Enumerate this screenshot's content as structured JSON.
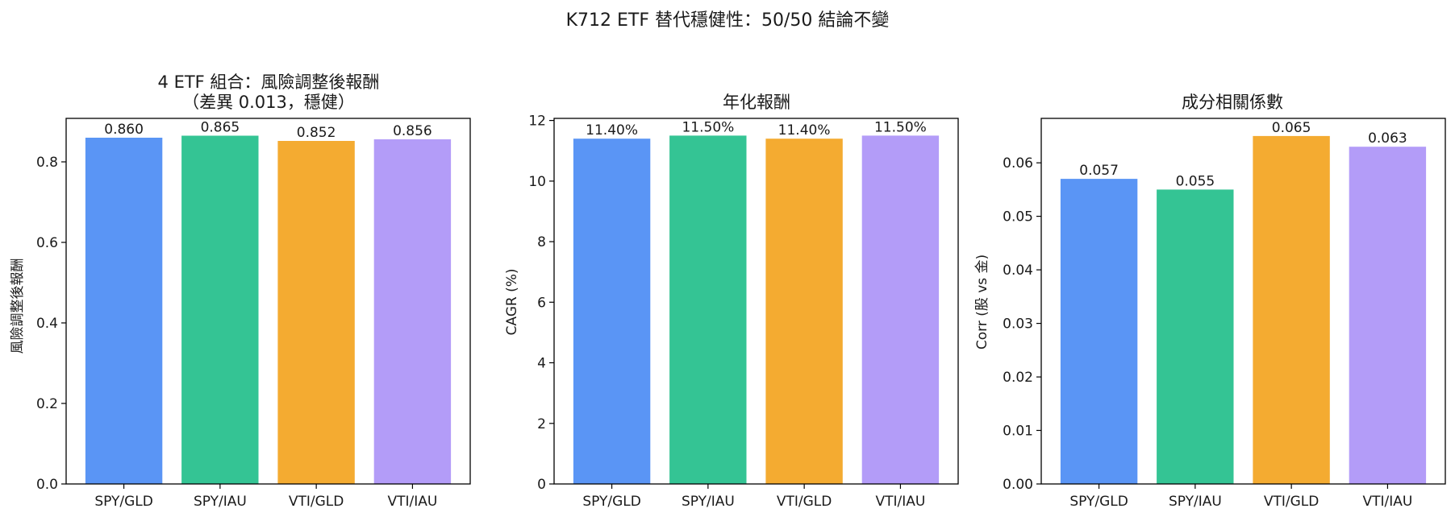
{
  "figure": {
    "title": "K712 ETF 替代穩健性：50/50 結論不變"
  },
  "chart_data": [
    {
      "type": "bar",
      "title_lines": [
        "4 ETF 組合：風險調整後報酬",
        "（差異 0.013，穩健）"
      ],
      "ylabel": "風險調整後報酬",
      "categories": [
        "SPY/GLD",
        "SPY/IAU",
        "VTI/GLD",
        "VTI/IAU"
      ],
      "values": [
        0.86,
        0.865,
        0.852,
        0.856
      ],
      "value_labels": [
        "0.860",
        "0.865",
        "0.852",
        "0.856"
      ],
      "ylim": [
        0,
        0.908
      ],
      "yticks": [
        0.0,
        0.2,
        0.4,
        0.6,
        0.8
      ],
      "ytick_labels": [
        "0.0",
        "0.2",
        "0.4",
        "0.6",
        "0.8"
      ],
      "colors": [
        "#5a95f5",
        "#34c494",
        "#f4ab31",
        "#b39cf8"
      ]
    },
    {
      "type": "bar",
      "title_lines": [
        "年化報酬"
      ],
      "ylabel": "CAGR (%)",
      "categories": [
        "SPY/GLD",
        "SPY/IAU",
        "VTI/GLD",
        "VTI/IAU"
      ],
      "values": [
        11.4,
        11.5,
        11.4,
        11.5
      ],
      "value_labels": [
        "11.40%",
        "11.50%",
        "11.40%",
        "11.50%"
      ],
      "ylim": [
        0,
        12.07
      ],
      "yticks": [
        0,
        2,
        4,
        6,
        8,
        10,
        12
      ],
      "ytick_labels": [
        "0",
        "2",
        "4",
        "6",
        "8",
        "10",
        "12"
      ],
      "colors": [
        "#5a95f5",
        "#34c494",
        "#f4ab31",
        "#b39cf8"
      ]
    },
    {
      "type": "bar",
      "title_lines": [
        "成分相關係數"
      ],
      "ylabel": "Corr (股 vs 金)",
      "categories": [
        "SPY/GLD",
        "SPY/IAU",
        "VTI/GLD",
        "VTI/IAU"
      ],
      "values": [
        0.057,
        0.055,
        0.065,
        0.063
      ],
      "value_labels": [
        "0.057",
        "0.055",
        "0.065",
        "0.063"
      ],
      "ylim": [
        0,
        0.0683
      ],
      "yticks": [
        0.0,
        0.01,
        0.02,
        0.03,
        0.04,
        0.05,
        0.06
      ],
      "ytick_labels": [
        "0.00",
        "0.01",
        "0.02",
        "0.03",
        "0.04",
        "0.05",
        "0.06"
      ],
      "colors": [
        "#5a95f5",
        "#34c494",
        "#f4ab31",
        "#b39cf8"
      ]
    }
  ]
}
